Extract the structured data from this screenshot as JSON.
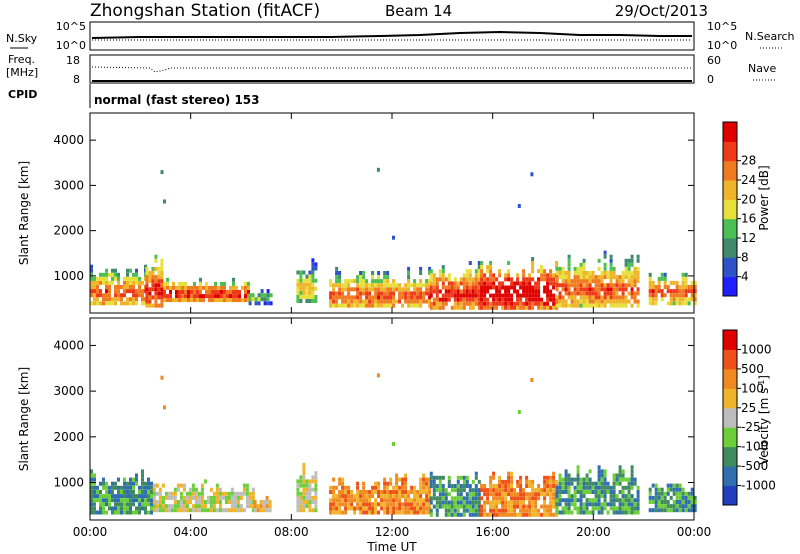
{
  "header": {
    "title": "Zhongshan Station (fitACF)",
    "beam": "Beam 14",
    "date": "29/Oct/2013"
  },
  "strip_panels": {
    "noise": {
      "left_label": "N.Sky",
      "right_label": "N.Search",
      "left_ticks": [
        "10^5",
        "10^0"
      ],
      "right_ticks": [
        "10^5",
        "10^0"
      ]
    },
    "freq": {
      "left_label_line1": "Freq.",
      "left_label_line2": "[MHz]",
      "right_label": "Nave",
      "left_ticks": [
        "18",
        "8"
      ],
      "right_ticks": [
        "60",
        "0"
      ]
    },
    "cpid": {
      "label": "CPID",
      "text": "normal (fast stereo) 153"
    }
  },
  "x_axis": {
    "label": "Time UT",
    "tick_labels": [
      "00:00",
      "04:00",
      "08:00",
      "12:00",
      "16:00",
      "20:00",
      "00:00"
    ]
  },
  "chart_data": [
    {
      "type": "heatmap",
      "ylabel": "Slant Range [km]",
      "ytick_labels": [
        "1000",
        "2000",
        "3000",
        "4000"
      ],
      "ylim": [
        180,
        4600
      ],
      "xlim_hours": [
        0,
        24
      ],
      "colorbar": {
        "label": "Power [dB]",
        "ticks": [
          "4",
          "8",
          "12",
          "16",
          "20",
          "24",
          "28"
        ],
        "colors": [
          "#1f1fff",
          "#2f52c8",
          "#3f8a6f",
          "#4bbf52",
          "#e8e03a",
          "#f0b42a",
          "#f07a20",
          "#ee3a18",
          "#e00000"
        ]
      },
      "bands": [
        {
          "h0": 0.0,
          "h1": 2.2,
          "lo": 350,
          "hi": 1200,
          "core": 580,
          "level": 5
        },
        {
          "h0": 2.2,
          "h1": 2.9,
          "lo": 300,
          "hi": 1450,
          "core": 620,
          "level": 6
        },
        {
          "h0": 2.9,
          "h1": 6.3,
          "lo": 420,
          "hi": 900,
          "core": 550,
          "level": 6
        },
        {
          "h0": 6.3,
          "h1": 7.2,
          "lo": 350,
          "hi": 700,
          "core": 480,
          "level": 2
        },
        {
          "h0": 8.2,
          "h1": 9.0,
          "lo": 400,
          "hi": 1450,
          "core": 700,
          "level": 3
        },
        {
          "h0": 9.5,
          "h1": 13.5,
          "lo": 300,
          "hi": 1200,
          "core": 520,
          "level": 5
        },
        {
          "h0": 13.5,
          "h1": 15.5,
          "lo": 250,
          "hi": 1300,
          "core": 540,
          "level": 6
        },
        {
          "h0": 15.5,
          "h1": 18.5,
          "lo": 250,
          "hi": 1350,
          "core": 600,
          "level": 7
        },
        {
          "h0": 18.5,
          "h1": 21.8,
          "lo": 300,
          "hi": 1500,
          "core": 650,
          "level": 5
        },
        {
          "h0": 22.2,
          "h1": 24.0,
          "lo": 350,
          "hi": 1050,
          "core": 600,
          "level": 5
        }
      ],
      "isolated_echoes": [
        {
          "h": 2.8,
          "r": 3250,
          "level": 2
        },
        {
          "h": 2.9,
          "r": 2600,
          "level": 2
        },
        {
          "h": 17.0,
          "r": 2500,
          "level": 1
        },
        {
          "h": 17.5,
          "r": 3200,
          "level": 1
        },
        {
          "h": 11.4,
          "r": 3300,
          "level": 2
        },
        {
          "h": 12.0,
          "r": 1800,
          "level": 1
        }
      ]
    },
    {
      "type": "heatmap",
      "ylabel": "Slant Range [km]",
      "ytick_labels": [
        "1000",
        "2000",
        "3000",
        "4000"
      ],
      "ylim": [
        180,
        4600
      ],
      "xlim_hours": [
        0,
        24
      ],
      "colorbar": {
        "label": "Velocity [m s^-1]",
        "ticks": [
          "1000",
          "500",
          "100",
          "25",
          "-25",
          "-100",
          "-500",
          "-1000"
        ],
        "colors": [
          "#1f3fbf",
          "#2f6fb0",
          "#3f8a5f",
          "#6ccf3a",
          "#bdbdbd",
          "#f0b42a",
          "#f08a20",
          "#ee5018",
          "#e00000"
        ]
      },
      "bands": [
        {
          "h0": 0.0,
          "h1": 2.5,
          "lo": 300,
          "hi": 1250,
          "core": 600,
          "level": 2
        },
        {
          "h0": 2.5,
          "h1": 6.5,
          "lo": 350,
          "hi": 1000,
          "core": 560,
          "level": 4
        },
        {
          "h0": 6.5,
          "h1": 7.2,
          "lo": 350,
          "hi": 650,
          "core": 480,
          "level": 5
        },
        {
          "h0": 8.2,
          "h1": 9.0,
          "lo": 350,
          "hi": 1400,
          "core": 700,
          "level": 4
        },
        {
          "h0": 9.5,
          "h1": 13.5,
          "lo": 300,
          "hi": 1150,
          "core": 560,
          "level": 6
        },
        {
          "h0": 13.5,
          "h1": 15.5,
          "lo": 250,
          "hi": 1200,
          "core": 580,
          "level": 2
        },
        {
          "h0": 15.5,
          "h1": 18.5,
          "lo": 250,
          "hi": 1250,
          "core": 600,
          "level": 6
        },
        {
          "h0": 18.5,
          "h1": 21.8,
          "lo": 300,
          "hi": 1400,
          "core": 700,
          "level": 2
        },
        {
          "h0": 22.2,
          "h1": 24.0,
          "lo": 350,
          "hi": 1000,
          "core": 600,
          "level": 2
        }
      ],
      "isolated_echoes": [
        {
          "h": 2.8,
          "r": 3250,
          "level": 6
        },
        {
          "h": 2.9,
          "r": 2600,
          "level": 6
        },
        {
          "h": 17.0,
          "r": 2500,
          "level": 3
        },
        {
          "h": 17.5,
          "r": 3200,
          "level": 6
        },
        {
          "h": 11.4,
          "r": 3300,
          "level": 6
        },
        {
          "h": 12.0,
          "r": 1800,
          "level": 3
        }
      ]
    }
  ]
}
